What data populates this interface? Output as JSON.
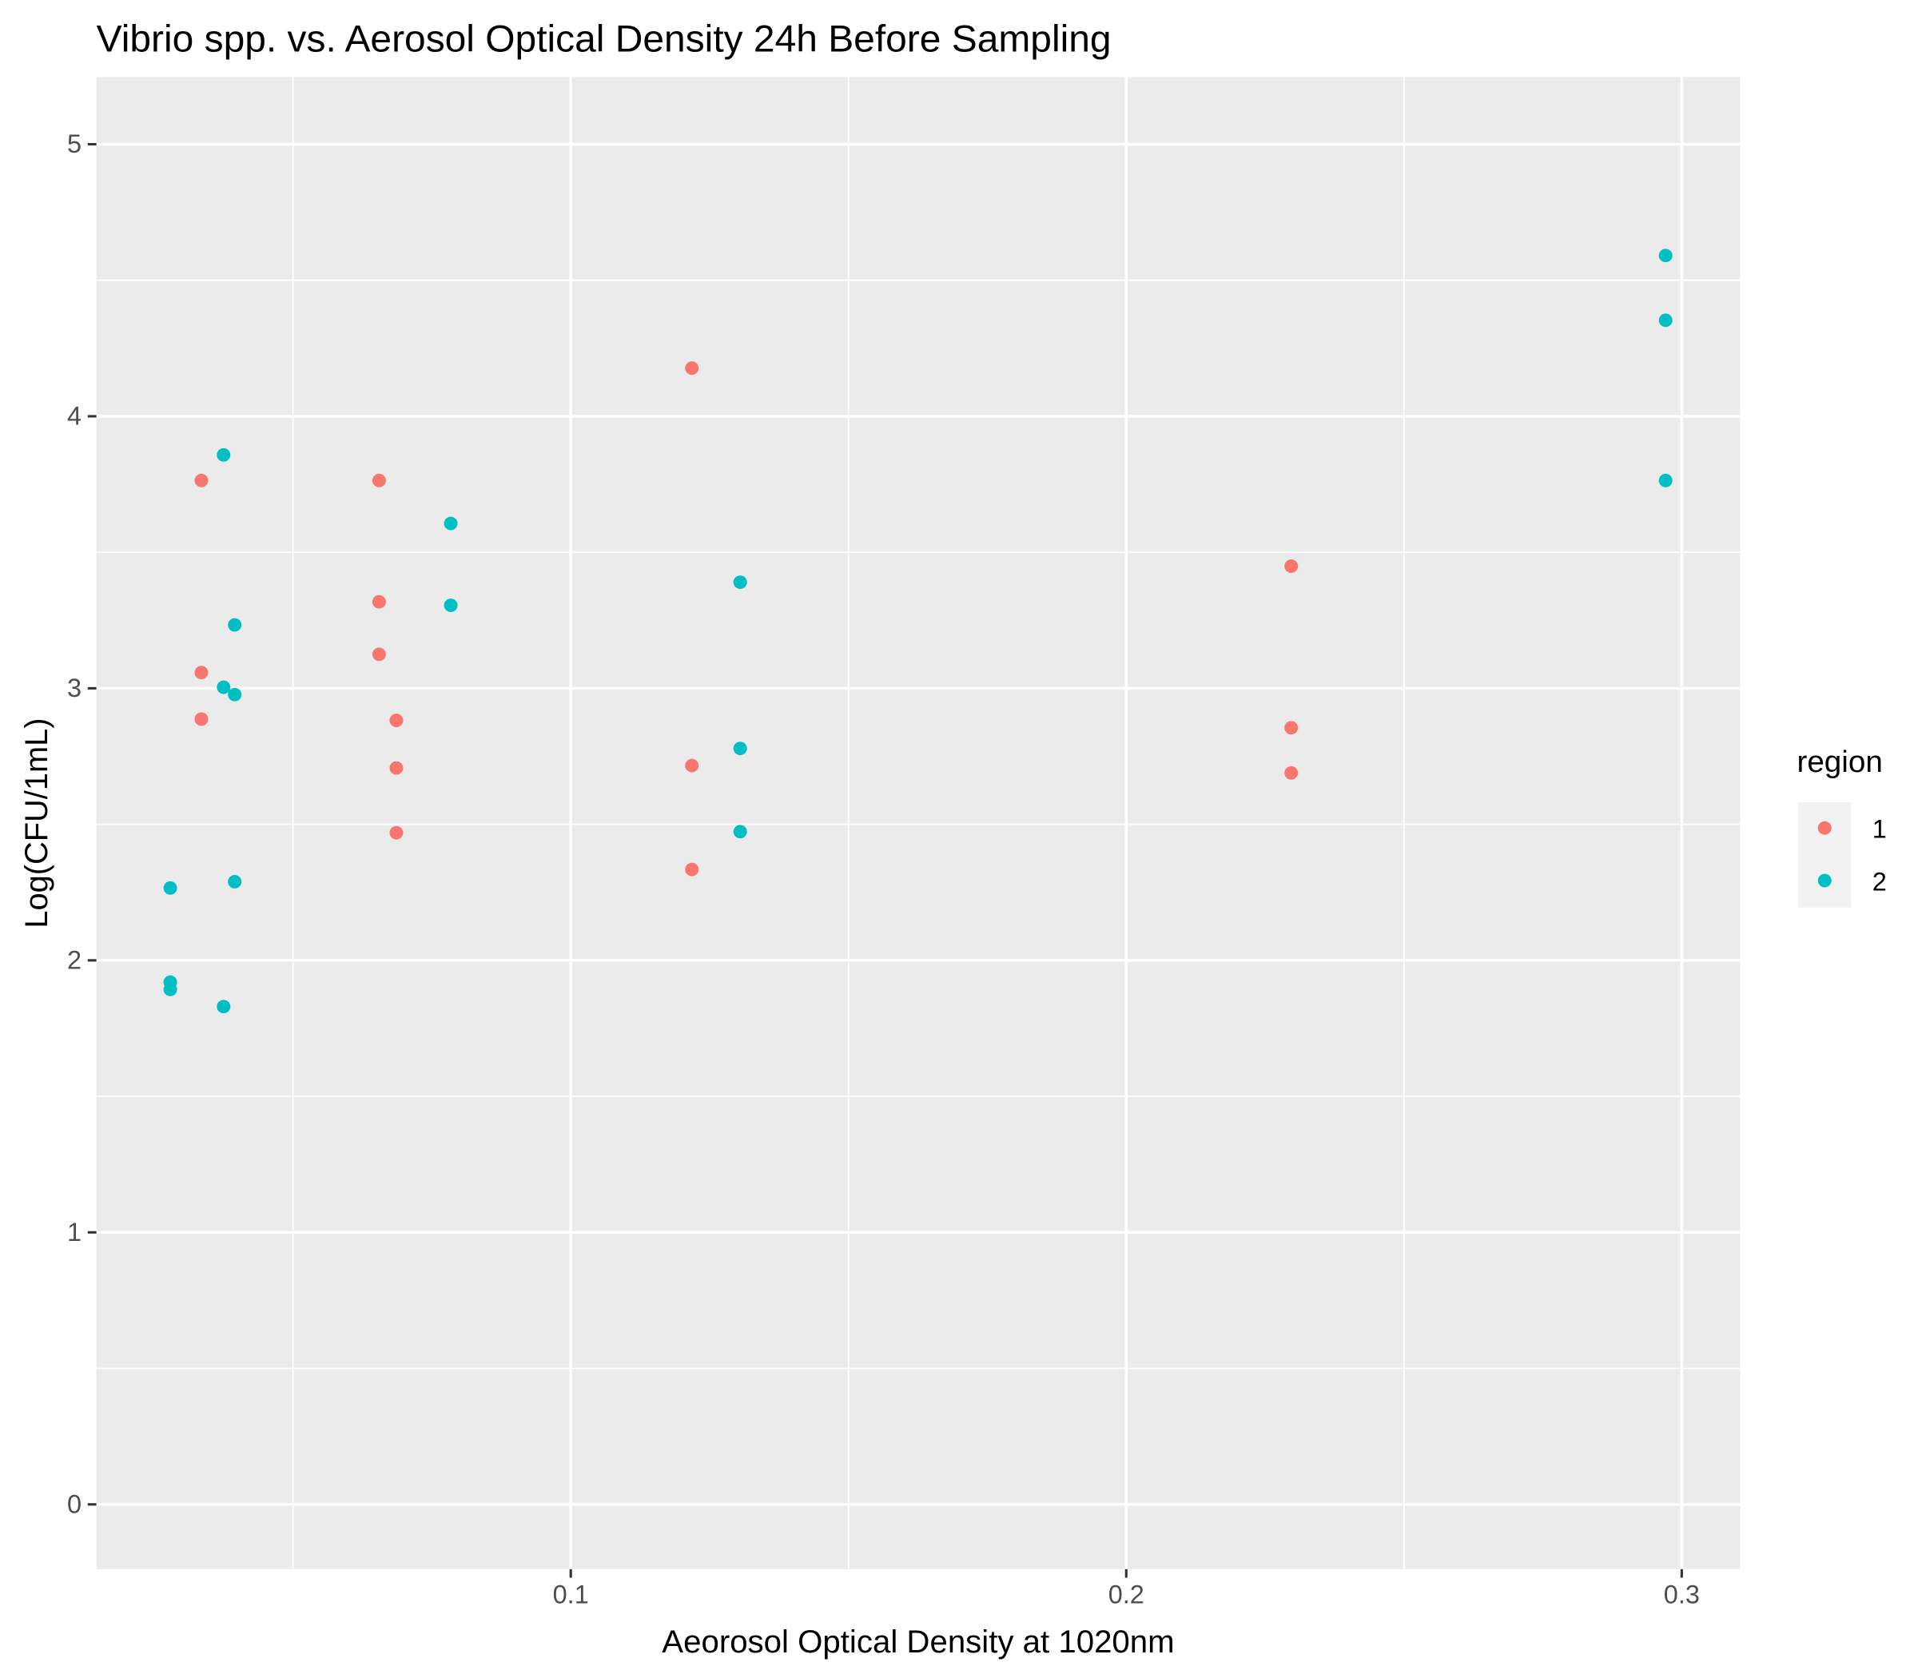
{
  "chart_data": {
    "type": "scatter",
    "title": "Vibrio spp. vs. Aerosol Optical Density 24h Before Sampling",
    "x_label": "Aeorosol Optical Density at 1020nm",
    "y_label": "Log(CFU/1mL)",
    "legend_title": "region",
    "legend_position": "right",
    "grid": true,
    "xlim": [
      0.0146,
      0.3105
    ],
    "xticks": [
      0.1,
      0.2,
      0.3
    ],
    "ylim": [
      -0.238,
      5.247
    ],
    "yticks": [
      0,
      1,
      2,
      3,
      4,
      5
    ],
    "series": [
      {
        "name": "1",
        "color": "#F8766D",
        "x": [
          0.0335,
          0.0335,
          0.0335,
          0.0655,
          0.0655,
          0.0655,
          0.0686,
          0.0686,
          0.0686,
          0.1218,
          0.1218,
          0.1218,
          0.2297,
          0.2297,
          0.2297
        ],
        "values": [
          3.764,
          3.058,
          2.887,
          3.764,
          3.318,
          3.125,
          2.882,
          2.707,
          2.469,
          4.177,
          2.716,
          2.334,
          3.449,
          2.855,
          2.689
        ]
      },
      {
        "name": "2",
        "color": "#00BFC4",
        "x": [
          0.0279,
          0.0279,
          0.0279,
          0.0375,
          0.0375,
          0.0375,
          0.0395,
          0.0395,
          0.0395,
          0.0784,
          0.0784,
          0.1305,
          0.1305,
          0.1305,
          0.2971,
          0.2971,
          0.2971
        ],
        "values": [
          2.266,
          1.92,
          1.893,
          3.858,
          3.004,
          1.83,
          3.233,
          2.977,
          2.289,
          3.606,
          3.305,
          3.39,
          2.779,
          2.473,
          4.591,
          4.353,
          3.764
        ]
      }
    ]
  }
}
